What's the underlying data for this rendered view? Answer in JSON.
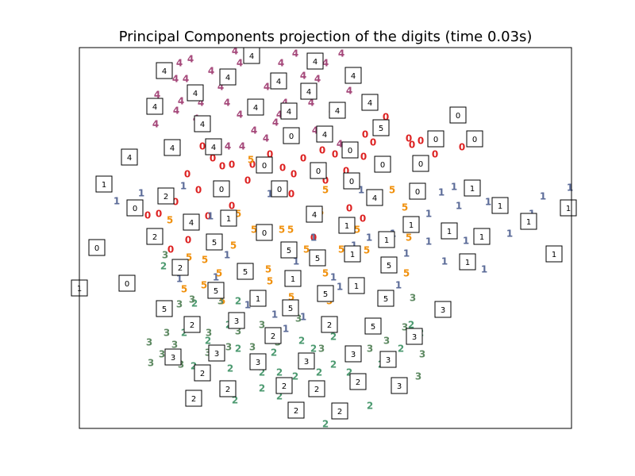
{
  "chart_data": {
    "type": "scatter",
    "title": "Principal Components projection of the digits (time 0.03s)",
    "xlim": [
      0,
      62
    ],
    "ylim": [
      0,
      48
    ],
    "series": [
      {
        "name": "0",
        "color": "#dd2222",
        "x": [
          13.6,
          15.5,
          16.8,
          19.2,
          21.2,
          24,
          25.6,
          27,
          28.2,
          30.6,
          32.2,
          33.6,
          35.8,
          37,
          38.6,
          41.5,
          41.9,
          48.2,
          44.8,
          43,
          36,
          10,
          8.6,
          11.5,
          13.7,
          12.1,
          15,
          18,
          26.7,
          34,
          35.7,
          29.5,
          21.8,
          16.2,
          31,
          19.2
        ],
        "y": [
          32,
          35.5,
          34,
          33.2,
          31.2,
          34.5,
          32.8,
          32,
          34,
          35,
          34.5,
          32.4,
          34.2,
          36,
          39.2,
          36.5,
          35.7,
          35.4,
          34.5,
          36.2,
          37,
          27,
          26.8,
          22.5,
          23.7,
          28.5,
          30,
          33,
          29.5,
          27.7,
          26.4,
          24,
          33.2,
          26.7,
          31.2,
          28
        ]
      },
      {
        "name": "1",
        "color": "#5b6b98",
        "x": [
          7.8,
          4.7,
          13.1,
          16.5,
          12.6,
          17.2,
          18.6,
          24,
          27.3,
          29.5,
          32,
          36.5,
          39.5,
          41.2,
          44,
          45.6,
          47.2,
          47.8,
          51.5,
          54.2,
          57,
          58.4,
          61.8,
          46,
          51,
          44,
          37,
          28.2,
          21.2,
          24.6,
          32.8,
          34.6,
          26,
          40.2,
          48.7,
          35.5
        ],
        "y": [
          29.6,
          28.6,
          30.5,
          26.7,
          18.8,
          19,
          21.8,
          29.5,
          21,
          24,
          19,
          24,
          24.5,
          22,
          23.5,
          29.7,
          30.4,
          28,
          28.5,
          24.5,
          27,
          29.2,
          30.3,
          21,
          20,
          27,
          28.5,
          14,
          15.5,
          14.3,
          17.8,
          23,
          12.5,
          18,
          23.6,
          30
        ]
      },
      {
        "name": "2",
        "color": "#4c9a70",
        "x": [
          13.2,
          14.4,
          16.2,
          19,
          20,
          23,
          24.5,
          25.2,
          27.2,
          29.5,
          30.2,
          32,
          34,
          35.5,
          38,
          40.5,
          41.8,
          43,
          25.2,
          23,
          19.6,
          31,
          33.5,
          36.6,
          28,
          20,
          18.8,
          14.5,
          10.6,
          32
        ],
        "y": [
          12,
          7.8,
          11,
          7.5,
          10,
          7,
          9.5,
          7,
          6.5,
          10,
          7,
          8,
          7,
          6,
          8,
          10,
          13,
          12,
          4,
          5,
          3.5,
          0.5,
          2,
          2.8,
          11,
          16,
          13,
          15.7,
          20.4,
          11.5
        ]
      },
      {
        "name": "3",
        "color": "#5f8a63",
        "x": [
          9,
          10.4,
          11,
          8.8,
          12,
          14.2,
          16.3,
          17.8,
          18.8,
          20,
          21.8,
          23,
          24,
          27.6,
          30.5,
          32,
          34.3,
          36.6,
          38.7,
          41,
          42,
          43.2,
          36.6,
          25,
          12.8,
          16.2,
          42.7,
          10.8,
          12.6
        ],
        "y": [
          8.2,
          9.3,
          12,
          10.8,
          10.5,
          16.2,
          12,
          16,
          10.2,
          12.2,
          10.2,
          13,
          12,
          13.8,
          10,
          13,
          9.5,
          10,
          11,
          12.7,
          16.4,
          9.3,
          12.7,
          10.8,
          8,
          9.5,
          6.5,
          21.8,
          15.6
        ]
      },
      {
        "name": "4",
        "color": "#a5487a",
        "x": [
          14,
          12.6,
          12.1,
          13.4,
          9.8,
          12.8,
          9.7,
          12.2,
          14.7,
          9.6,
          16.6,
          19.6,
          20.2,
          17.8,
          18.6,
          20.2,
          22,
          23.6,
          25.4,
          27.2,
          28.2,
          30,
          31,
          33,
          31.8,
          29.7,
          24.7,
          25.9,
          32.8,
          18.7,
          15.3,
          20.5,
          23.5,
          29.2,
          22.2,
          25.2,
          34
        ],
        "y": [
          46.5,
          46,
          44,
          44,
          42,
          41.2,
          40,
          40,
          39,
          38.3,
          45,
          47.5,
          46,
          43,
          41,
          39.5,
          37.5,
          43,
          46,
          47.2,
          44.4,
          44,
          46,
          47.2,
          40,
          37.5,
          38.5,
          41,
          35.8,
          35.5,
          41,
          35.5,
          36.5,
          41,
          46.5,
          39.5,
          42.5
        ]
      },
      {
        "name": "5",
        "color": "#f0900c",
        "x": [
          21.6,
          13.8,
          15.8,
          13,
          17.6,
          20,
          23.8,
          25.5,
          28.6,
          31,
          33,
          34.4,
          26.7,
          31.5,
          36.2,
          41.5,
          41.2,
          41,
          39.4,
          31,
          19.4,
          22,
          15.7,
          18,
          26.6,
          35,
          30.4,
          11.4,
          13.2,
          24
        ],
        "y": [
          33.8,
          21.5,
          21.2,
          20,
          19.5,
          27,
          20,
          25,
          22.5,
          19.5,
          22.5,
          21.5,
          16.5,
          16,
          22.4,
          24,
          19.5,
          27.8,
          30,
          30,
          23,
          25,
          18,
          16,
          25,
          25,
          27.2,
          26.2,
          17.5,
          18.5
        ]
      }
    ],
    "thumbnails": {
      "x": [
        10.7,
        14.6,
        9.5,
        11.7,
        6.3,
        18.7,
        21.7,
        25.1,
        29.7,
        34.5,
        28.9,
        22.2,
        26.4,
        32.5,
        36.6,
        15.5,
        16.9,
        30.9,
        26.7,
        38,
        47.7,
        44.9,
        49.8,
        34.1,
        38.2,
        43,
        23.3,
        30.1,
        34.3,
        17.9,
        25.2,
        42.6,
        37.2,
        49.5,
        53,
        61.6,
        3.1,
        7,
        10.9,
        14.1,
        18.8,
        29.6,
        33.7,
        41.8,
        46.6,
        50.7,
        56.6,
        59.8,
        48.9,
        38.7,
        9.5,
        2.2,
        17,
        23.3,
        26.4,
        34.4,
        30,
        39,
        12.7,
        20.9,
        26.9,
        6,
        0,
        34.9,
        17.2,
        31,
        22.5,
        38.6,
        26.6,
        10.7,
        45.8,
        14.2,
        19.8,
        31.5,
        37,
        24.4,
        42.2,
        17.3,
        34.5,
        11.8,
        28.6,
        22.5,
        38.9,
        15.5,
        35.1,
        25.8,
        18.7,
        29.9,
        40.3,
        14.4,
        27.3,
        32.8
      ],
      "y": [
        45.1,
        42.3,
        40.6,
        35.4,
        34.2,
        44.3,
        47,
        43.8,
        46.3,
        44.5,
        42.5,
        40.5,
        40,
        40.1,
        41.1,
        38.4,
        35.5,
        37.1,
        36.9,
        37.9,
        39.5,
        36.5,
        36.5,
        35.1,
        33.3,
        33.4,
        33.2,
        32.5,
        31.2,
        30.2,
        30.2,
        29.9,
        29.1,
        30.3,
        28.1,
        27.8,
        30.8,
        27.8,
        29.3,
        26,
        26.5,
        27,
        25.6,
        25.7,
        24.9,
        24.2,
        26.1,
        22,
        21,
        23.8,
        24.2,
        22.8,
        23.5,
        24.7,
        22.5,
        22,
        21.5,
        20.6,
        20.3,
        19.8,
        18.9,
        18.3,
        17.7,
        18,
        17.4,
        17,
        16.4,
        16.4,
        15.2,
        15.1,
        15,
        13.1,
        13.6,
        13.1,
        12.9,
        11.7,
        11.6,
        9.5,
        9.4,
        9,
        8.5,
        8.4,
        8.7,
        7,
        5.9,
        5.4,
        5,
        5,
        5.4,
        3.8,
        2.3,
        2.2
      ],
      "digits": [
        "4",
        "4",
        "4",
        "4",
        "4",
        "4",
        "4",
        "4",
        "4",
        "4",
        "4",
        "4",
        "4",
        "4",
        "4",
        "4",
        "4",
        "4",
        "0",
        "5",
        "0",
        "0",
        "0",
        "0",
        "0",
        "0",
        "0",
        "0",
        "0",
        "0",
        "0",
        "0",
        "4",
        "1",
        "1",
        "1",
        "1",
        "0",
        "2",
        "4",
        "1",
        "4",
        "1",
        "1",
        "1",
        "1",
        "1",
        "1",
        "1",
        "1",
        "2",
        "0",
        "5",
        "0",
        "5",
        "1",
        "5",
        "5",
        "2",
        "5",
        "1",
        "0",
        "1",
        "1",
        "5",
        "5",
        "1",
        "5",
        "5",
        "5",
        "3",
        "2",
        "3",
        "2",
        "5",
        "2",
        "3",
        "3",
        "3",
        "3",
        "3",
        "3",
        "3",
        "2",
        "2",
        "2",
        "2",
        "2",
        "3",
        "2",
        "2",
        "2"
      ]
    }
  }
}
